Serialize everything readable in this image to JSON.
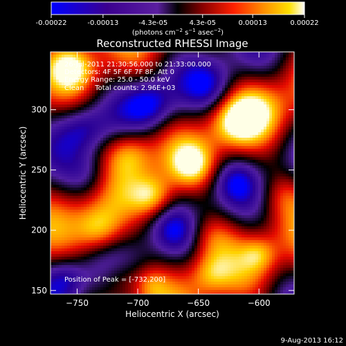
{
  "colorbar": {
    "tick_labels": [
      "-0.00022",
      "-0.00013",
      "-4.3e-05",
      "4.3e-05",
      "0.00013",
      "0.00022"
    ],
    "range": [
      -0.00022,
      0.00022
    ],
    "unit_parts": {
      "a": "(photons cm",
      "a_sup": "−2",
      "b": " s",
      "b_sup": "−1",
      "c": " asec",
      "c_sup": "−2",
      "d": ")"
    }
  },
  "chart_data": {
    "type": "heatmap",
    "title": "Reconstructed RHESSI Image",
    "xlabel": "Heliocentric X (arcsec)",
    "ylabel": "Heliocentric Y (arcsec)",
    "xlim": [
      -772,
      -571
    ],
    "ylim": [
      147,
      348
    ],
    "xticks": [
      -750,
      -700,
      -650,
      -600
    ],
    "xtick_labels": [
      "−750",
      "−700",
      "−650",
      "−600"
    ],
    "yticks": [
      150,
      200,
      250,
      300
    ],
    "ytick_labels": [
      "150",
      "200",
      "250",
      "300"
    ],
    "annotations": [
      "26-Jul-2011 21:30:56.000 to 21:33:00.000",
      "Detectors: 4F 5F 6F 7F 8F, Att 0",
      "Energy Range: 25.0 - 50.0 keV",
      "Clean     Total counts: 2.96E+03"
    ],
    "peak_label": "Position of Peak = [-732,200]",
    "peak_position": [
      -732,
      200
    ],
    "grid": false,
    "colormap": [
      "#0000ff",
      "#3b0090",
      "#5b1fa0",
      "#000000",
      "#7f0000",
      "#ff0000",
      "#ff7f00",
      "#ffd000",
      "#ffffff"
    ]
  },
  "footer": {
    "date": "9-Aug-2013 16:12"
  }
}
